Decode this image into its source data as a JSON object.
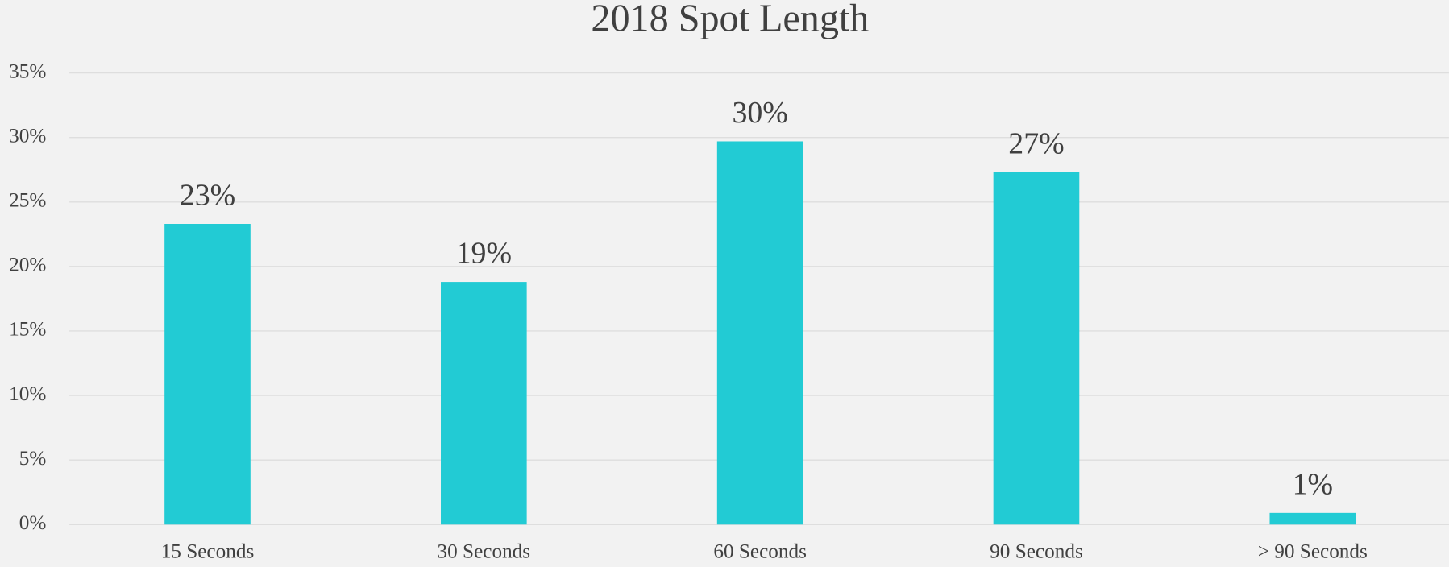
{
  "chart_data": {
    "type": "bar",
    "title": "2018 Spot Length",
    "categories": [
      "15 Seconds",
      "30 Seconds",
      "60 Seconds",
      "90 Seconds",
      "> 90 Seconds"
    ],
    "values": [
      23.3,
      18.8,
      29.7,
      27.3,
      0.9
    ],
    "value_labels": [
      "23%",
      "19%",
      "30%",
      "27%",
      "1%"
    ],
    "color": "#22cbd4",
    "ylim": [
      0,
      35
    ],
    "yticks": [
      {
        "value": 0,
        "label": "0%"
      },
      {
        "value": 5,
        "label": "5%"
      },
      {
        "value": 10,
        "label": "10%"
      },
      {
        "value": 15,
        "label": "15%"
      },
      {
        "value": 20,
        "label": "20%"
      },
      {
        "value": 25,
        "label": "25%"
      },
      {
        "value": 30,
        "label": "30%"
      },
      {
        "value": 35,
        "label": "35%"
      }
    ],
    "grid": true
  }
}
